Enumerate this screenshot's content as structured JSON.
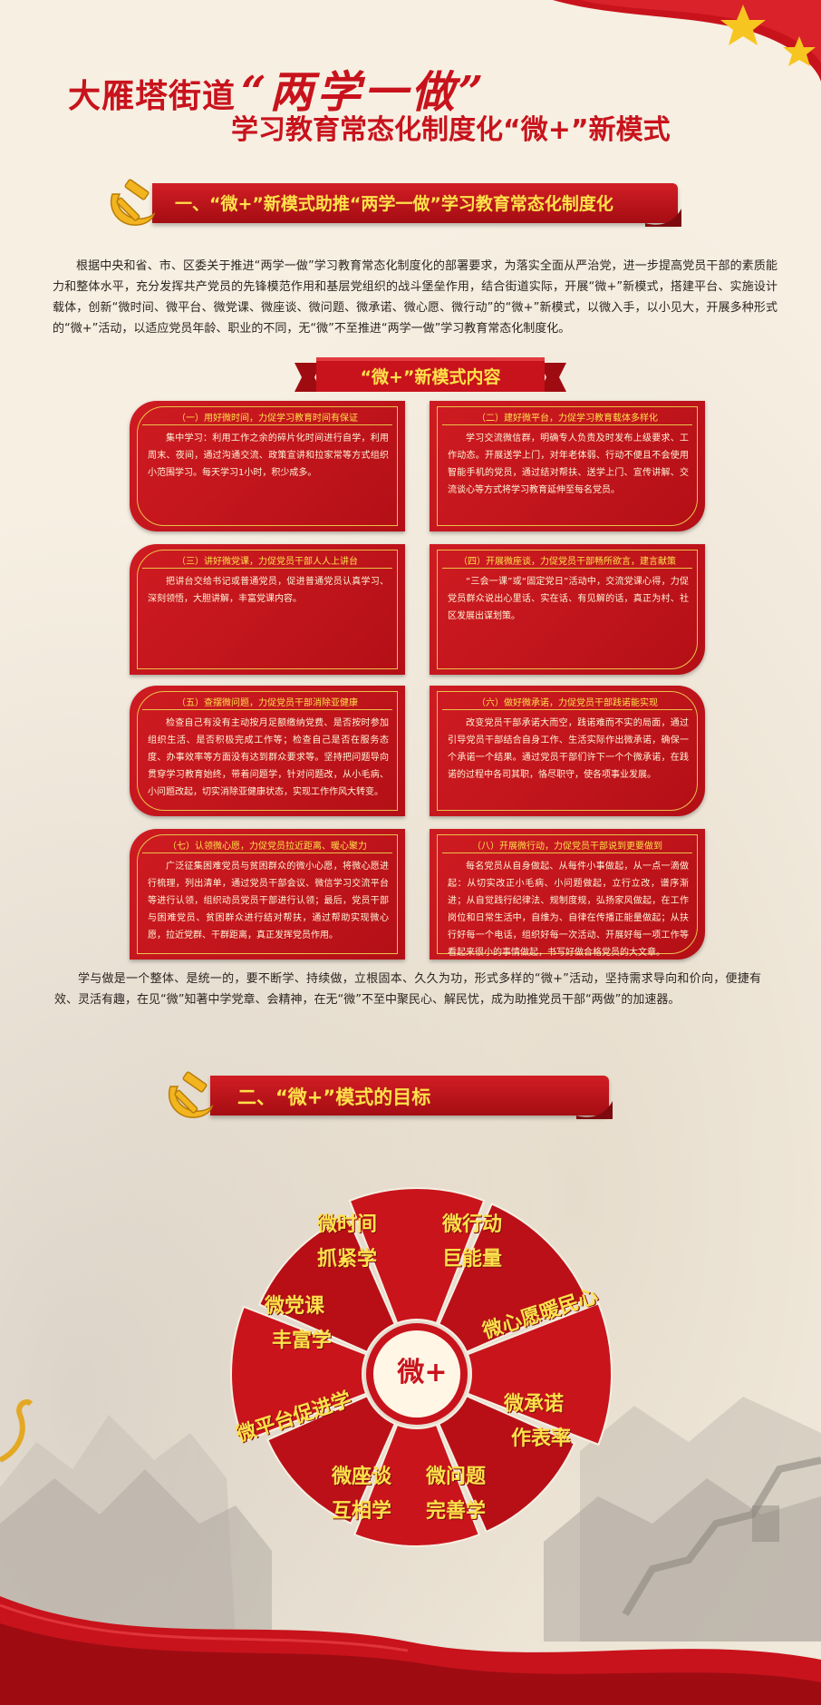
{
  "header": {
    "title_prefix": "大雁塔街道",
    "title_quoted": "“两学一做”",
    "subtitle": "学习教育常态化制度化“微+”新模式"
  },
  "section1": {
    "title": "一、“微+”新模式助推“两学一做”学习教育常态化制度化",
    "intro": "根据中央和省、市、区委关于推进“两学一做”学习教育常态化制度化的部署要求，为落实全面从严治党，进一步提高党员干部的素质能力和整体水平，充分发挥共产党员的先锋模范作用和基层党组织的战斗堡垒作用，结合街道实际，开展“微+”新模式，搭建平台、实施设计载体，创新“微时间、微平台、微党课、微座谈、微问题、微承诺、微心愿、微行动”的“微+”新模式，以微入手，以小见大，开展多种形式的“微+”活动，以适应党员年龄、职业的不同，无“微”不至推进“两学一做”学习教育常态化制度化。",
    "content_banner": "“微+”新模式内容",
    "cards": [
      {
        "head": "（一）用好微时间，力促学习教育时间有保证",
        "body": "集中学习：利用工作之余的碎片化时间进行自学，利用周末、夜间，通过沟通交流、政策宣讲和拉家常等方式组织小范围学习。每天学习1小时，积少成多。"
      },
      {
        "head": "（二）建好微平台，力促学习教育载体多样化",
        "body": "学习交流微信群，明确专人负责及时发布上级要求、工作动态。开展送学上门，对年老体弱、行动不便且不会使用智能手机的党员，通过结对帮扶、送学上门、宣传讲解、交流谈心等方式将学习教育延伸至每名党员。"
      },
      {
        "head": "（三）讲好微党课，力促党员干部人人上讲台",
        "body": "把讲台交给书记或普通党员，促进普通党员认真学习、深刻领悟，大胆讲解，丰富党课内容。"
      },
      {
        "head": "（四）开展微座谈，力促党员干部畅所欲言，建言献策",
        "body": "“三会一课”或“固定党日”活动中，交流党课心得，力促党员群众说出心里话、实在话、有见解的话，真正为村、社区发展出谋划策。"
      },
      {
        "head": "（五）查摆微问题，力促党员干部消除亚健康",
        "body": "检查自己有没有主动按月足额缴纳党费、是否按时参加组织生活、是否积极完成工作等；检查自己是否在服务态度、办事效率等方面没有达到群众要求等。坚持把问题导向贯穿学习教育始终，带着问题学，针对问题改，从小毛病、小问题改起，切实消除亚健康状态，实现工作作风大转变。"
      },
      {
        "head": "（六）做好微承诺，力促党员干部践诺能实现",
        "body": "改变党员干部承诺大而空，践诺难而不实的局面，通过引导党员干部结合自身工作、生活实际作出微承诺，确保一个承诺一个结果。通过党员干部们许下一个个微承诺，在践诺的过程中各司其职，恪尽职守，使各项事业发展。"
      },
      {
        "head": "（七）认领微心愿，力促党员拉近距离、暖心聚力",
        "body": "广泛征集困难党员与贫困群众的微小心愿，将微心愿进行梳理，列出清单，通过党员干部会议、微信学习交流平台等进行认领，组织动员党员干部进行认领；最后，党员干部与困难党员、贫困群众进行结对帮扶，通过帮助实现微心愿，拉近党群、干群距离，真正发挥党员作用。"
      },
      {
        "head": "（八）开展微行动，力促党员干部说到更要做到",
        "body": "每名党员从自身做起、从每件小事做起，从一点一滴做起：从切实改正小毛病、小问题做起，立行立改，谱序渐进；从自觉践行纪律法、规制度规，弘扬家风做起，在工作岗位和日常生活中，自维为、自律在传播正能量做起；从扶行好每一个电话，组织好每一次活动、开展好每一项工作等看起来很小的事情做起，书写好做合格党员的大文章。"
      }
    ],
    "outro": "学与做是一个整体、是统一的，要不断学、持续做，立根固本、久久为功，形式多样的“微+”活动，坚持需求导向和价向，便捷有效、灵活有趣，在见“微”知著中学党章、会精神，在无“微”不至中聚民心、解民忧，成为助推党员干部“两做”的加速器。"
  },
  "section2": {
    "title": "二、“微+”模式的目标",
    "center": "微+",
    "segments": [
      {
        "line1": "微时间",
        "line2": "抓紧学"
      },
      {
        "line1": "微行动",
        "line2": "巨能量"
      },
      {
        "line1": "微心愿暖民心",
        "line2": ""
      },
      {
        "line1": "微承诺",
        "line2": "作表率"
      },
      {
        "line1": "微问题",
        "line2": "完善学"
      },
      {
        "line1": "微座谈",
        "line2": "互相学"
      },
      {
        "line1": "微平台促进学",
        "line2": ""
      },
      {
        "line1": "微党课",
        "line2": "丰富学"
      }
    ]
  },
  "colors": {
    "primary_red": "#c8131c",
    "dark_red": "#a40d13",
    "gold": "#ffe14a",
    "background": "#f6efe2"
  }
}
